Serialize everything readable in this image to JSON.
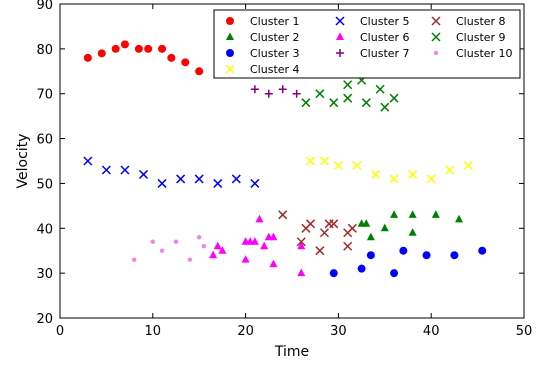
{
  "chart_data": {
    "type": "scatter",
    "title": "",
    "xlabel": "Time",
    "ylabel": "Velocity",
    "xlim": [
      0,
      50
    ],
    "ylim": [
      20,
      90
    ],
    "xticks": [
      0,
      10,
      20,
      30,
      40,
      50
    ],
    "yticks": [
      20,
      30,
      40,
      50,
      60,
      70,
      80,
      90
    ],
    "grid": false,
    "legend_position": "top-right",
    "legend_columns": 3,
    "series": [
      {
        "name": "Cluster 1",
        "marker": "circle",
        "color": "#ff0000",
        "points": [
          [
            3,
            78
          ],
          [
            4.5,
            79
          ],
          [
            6,
            80
          ],
          [
            7,
            81
          ],
          [
            8.5,
            80
          ],
          [
            9.5,
            80
          ],
          [
            11,
            80
          ],
          [
            12,
            78
          ],
          [
            13.5,
            77
          ],
          [
            15,
            75
          ]
        ]
      },
      {
        "name": "Cluster 2",
        "marker": "triangle",
        "color": "#008000",
        "points": [
          [
            32.5,
            41
          ],
          [
            33,
            41
          ],
          [
            33.5,
            38
          ],
          [
            35,
            40
          ],
          [
            36,
            43
          ],
          [
            38,
            43
          ],
          [
            38,
            39
          ],
          [
            40.5,
            43
          ],
          [
            43,
            42
          ]
        ]
      },
      {
        "name": "Cluster 3",
        "marker": "circle",
        "color": "#0000ff",
        "points": [
          [
            29.5,
            30
          ],
          [
            32.5,
            31
          ],
          [
            33.5,
            34
          ],
          [
            36,
            30
          ],
          [
            37,
            35
          ],
          [
            39.5,
            34
          ],
          [
            42.5,
            34
          ],
          [
            45.5,
            35
          ]
        ]
      },
      {
        "name": "Cluster 4",
        "marker": "x",
        "color": "#ffff00",
        "points": [
          [
            27,
            55
          ],
          [
            28.5,
            55
          ],
          [
            30,
            54
          ],
          [
            32,
            54
          ],
          [
            34,
            52
          ],
          [
            36,
            51
          ],
          [
            38,
            52
          ],
          [
            40,
            51
          ],
          [
            42,
            53
          ],
          [
            44,
            54
          ]
        ]
      },
      {
        "name": "Cluster 5",
        "marker": "x",
        "color": "#0000ff",
        "points": [
          [
            3,
            55
          ],
          [
            5,
            53
          ],
          [
            7,
            53
          ],
          [
            9,
            52
          ],
          [
            11,
            50
          ],
          [
            13,
            51
          ],
          [
            15,
            51
          ],
          [
            17,
            50
          ],
          [
            19,
            51
          ],
          [
            21,
            50
          ]
        ]
      },
      {
        "name": "Cluster 6",
        "marker": "triangle",
        "color": "#ff00ff",
        "points": [
          [
            16.5,
            34
          ],
          [
            17,
            36
          ],
          [
            17.5,
            35
          ],
          [
            20,
            37
          ],
          [
            20.5,
            37
          ],
          [
            20,
            33
          ],
          [
            21,
            37
          ],
          [
            21.5,
            42
          ],
          [
            22,
            36
          ],
          [
            22.5,
            38
          ],
          [
            23,
            38
          ],
          [
            23,
            32
          ],
          [
            26,
            36
          ],
          [
            26,
            30
          ]
        ]
      },
      {
        "name": "Cluster 7",
        "marker": "plus",
        "color": "#800080",
        "points": [
          [
            21,
            71
          ],
          [
            22.5,
            70
          ],
          [
            24,
            71
          ],
          [
            25.5,
            70
          ]
        ]
      },
      {
        "name": "Cluster 8",
        "marker": "x",
        "color": "#a52a2a",
        "points": [
          [
            24,
            43
          ],
          [
            26,
            37
          ],
          [
            26.5,
            40
          ],
          [
            27,
            41
          ],
          [
            28,
            35
          ],
          [
            28.5,
            39
          ],
          [
            29,
            41
          ],
          [
            29.5,
            41
          ],
          [
            31,
            39
          ],
          [
            31,
            36
          ],
          [
            31.5,
            40
          ]
        ]
      },
      {
        "name": "Cluster 9",
        "marker": "x",
        "color": "#008000",
        "points": [
          [
            26.5,
            68
          ],
          [
            28,
            70
          ],
          [
            29.5,
            68
          ],
          [
            31,
            72
          ],
          [
            31,
            69
          ],
          [
            32.5,
            73
          ],
          [
            33,
            68
          ],
          [
            34.5,
            71
          ],
          [
            35,
            67
          ],
          [
            36,
            69
          ]
        ]
      },
      {
        "name": "Cluster 10",
        "marker": "point",
        "color": "#ee82ee",
        "points": [
          [
            8,
            33
          ],
          [
            10,
            37
          ],
          [
            11,
            35
          ],
          [
            12.5,
            37
          ],
          [
            14,
            33
          ],
          [
            15,
            38
          ],
          [
            15.5,
            36
          ]
        ]
      }
    ]
  }
}
